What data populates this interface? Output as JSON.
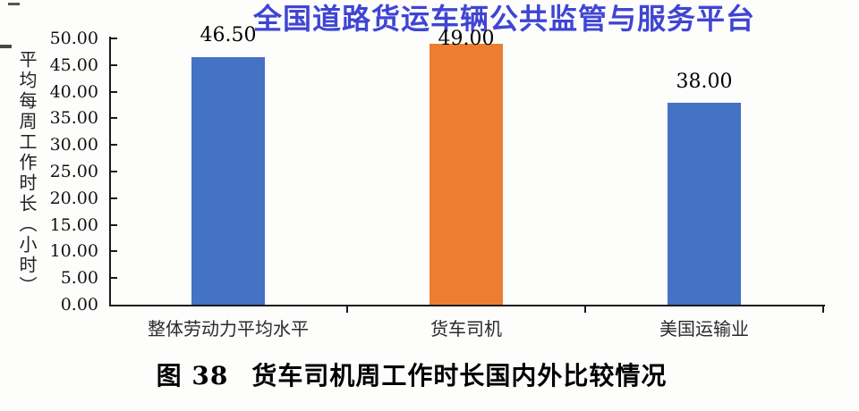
{
  "watermark_title": "全国道路货运车辆公共监管与服务平台",
  "chart_data": {
    "type": "bar",
    "title": "",
    "categories": [
      "整体劳动力平均水平",
      "货车司机",
      "美国运输业"
    ],
    "values": [
      46.5,
      49.0,
      38.0
    ],
    "value_labels": [
      "46.50",
      "49.00",
      "38.00"
    ],
    "bar_colors": [
      "#4472C4",
      "#ED7D31",
      "#4472C4"
    ],
    "xlabel": "",
    "ylabel": "平均每周工作时长（小时）",
    "ylim": [
      0,
      50
    ],
    "ytick_interval": 5,
    "ytick_labels": [
      "50.00",
      "45.00",
      "40.00",
      "35.00",
      "30.00",
      "25.00",
      "20.00",
      "15.00",
      "10.00",
      "5.00",
      "0.00"
    ],
    "grid": false,
    "legend": "none"
  },
  "caption": {
    "figure_label": "图 38",
    "text": "货车司机周工作时长国内外比较情况"
  },
  "colors": {
    "bar_blue": "#4472C4",
    "bar_orange": "#ED7D31",
    "watermark_blue": "#3F45D2",
    "axis": "#1A1A1A",
    "text": "#111111"
  }
}
